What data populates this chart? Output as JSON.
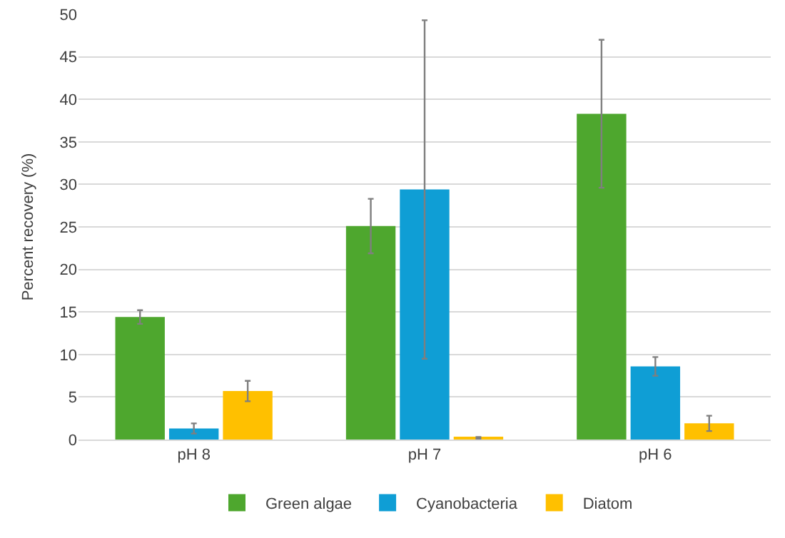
{
  "chart_data": {
    "type": "bar",
    "ylabel": "Percent recovery (%)",
    "categories": [
      "pH 8",
      "pH 7",
      "pH 6"
    ],
    "series": [
      {
        "name": "Green algae",
        "color": "#4ea72e",
        "values": [
          14.4,
          25.1,
          38.3
        ],
        "errors": [
          0.8,
          3.2,
          8.7
        ]
      },
      {
        "name": "Cyanobacteria",
        "color": "#0f9ed5",
        "values": [
          1.3,
          29.4,
          8.6
        ],
        "errors": [
          0.6,
          19.9,
          1.1
        ]
      },
      {
        "name": "Diatom",
        "color": "#ffc000",
        "values": [
          5.7,
          0.2,
          1.9
        ],
        "errors": [
          1.2,
          0.1,
          0.9
        ]
      }
    ],
    "ylim": [
      0,
      50
    ],
    "yticks": [
      0,
      5,
      10,
      15,
      20,
      25,
      30,
      35,
      40,
      45,
      50
    ],
    "grid": "y",
    "legend": "bottom"
  }
}
